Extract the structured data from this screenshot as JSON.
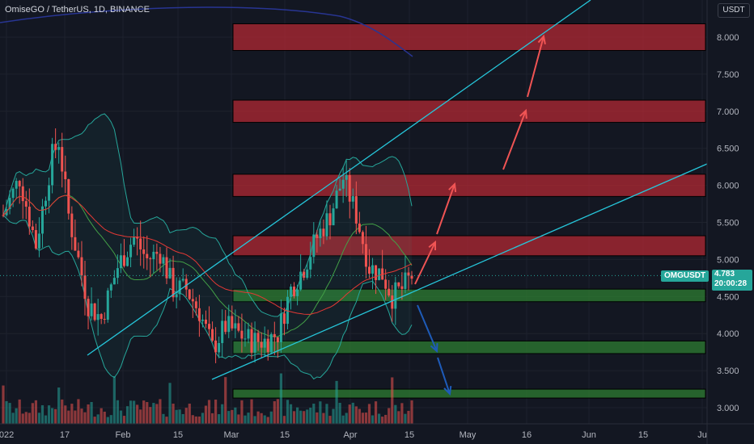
{
  "header": {
    "title": "OmiseGO / TetherUS, 1D, BINANCE",
    "currency": "USDT"
  },
  "price_badge": {
    "symbol": "OMGUSDT",
    "price": "4.783",
    "countdown": "20:00:28"
  },
  "y_axis": {
    "ticks": [
      "8.000",
      "7.500",
      "7.000",
      "6.500",
      "6.000",
      "5.500",
      "5.000",
      "4.500",
      "4.000",
      "3.500",
      "3.000"
    ]
  },
  "x_axis": {
    "ticks": [
      "022",
      "17",
      "Feb",
      "15",
      "Mar",
      "15",
      "Apr",
      "15",
      "May",
      "16",
      "Jun",
      "15",
      "Ju"
    ]
  },
  "colors": {
    "background": "#131722",
    "up": "#26a69a",
    "down": "#ef5350",
    "resistance_zone": "#b22833",
    "support_zone": "#2e7d32",
    "trendline": "#26c6da",
    "bollinger": "#26a69a",
    "ma_red": "#e53935",
    "ma_blue": "#283593",
    "arrow_up": "#f05454",
    "arrow_down": "#1e5bb8"
  },
  "chart_data": {
    "type": "candlestick",
    "ylim": [
      2.75,
      8.6
    ],
    "resistance_zones": [
      [
        7.82,
        8.18
      ],
      [
        6.85,
        7.15
      ],
      [
        5.85,
        6.15
      ],
      [
        5.05,
        5.32
      ]
    ],
    "support_zones": [
      [
        4.43,
        4.6
      ],
      [
        3.73,
        3.9
      ],
      [
        3.13,
        3.25
      ]
    ],
    "projection_up": [
      [
        4.6,
        5.2
      ],
      [
        5.35,
        5.95
      ],
      [
        6.4,
        7.0
      ],
      [
        7.2,
        8.0
      ]
    ],
    "projection_down": [
      [
        4.5,
        3.85
      ],
      [
        3.55,
        3.15
      ]
    ]
  }
}
